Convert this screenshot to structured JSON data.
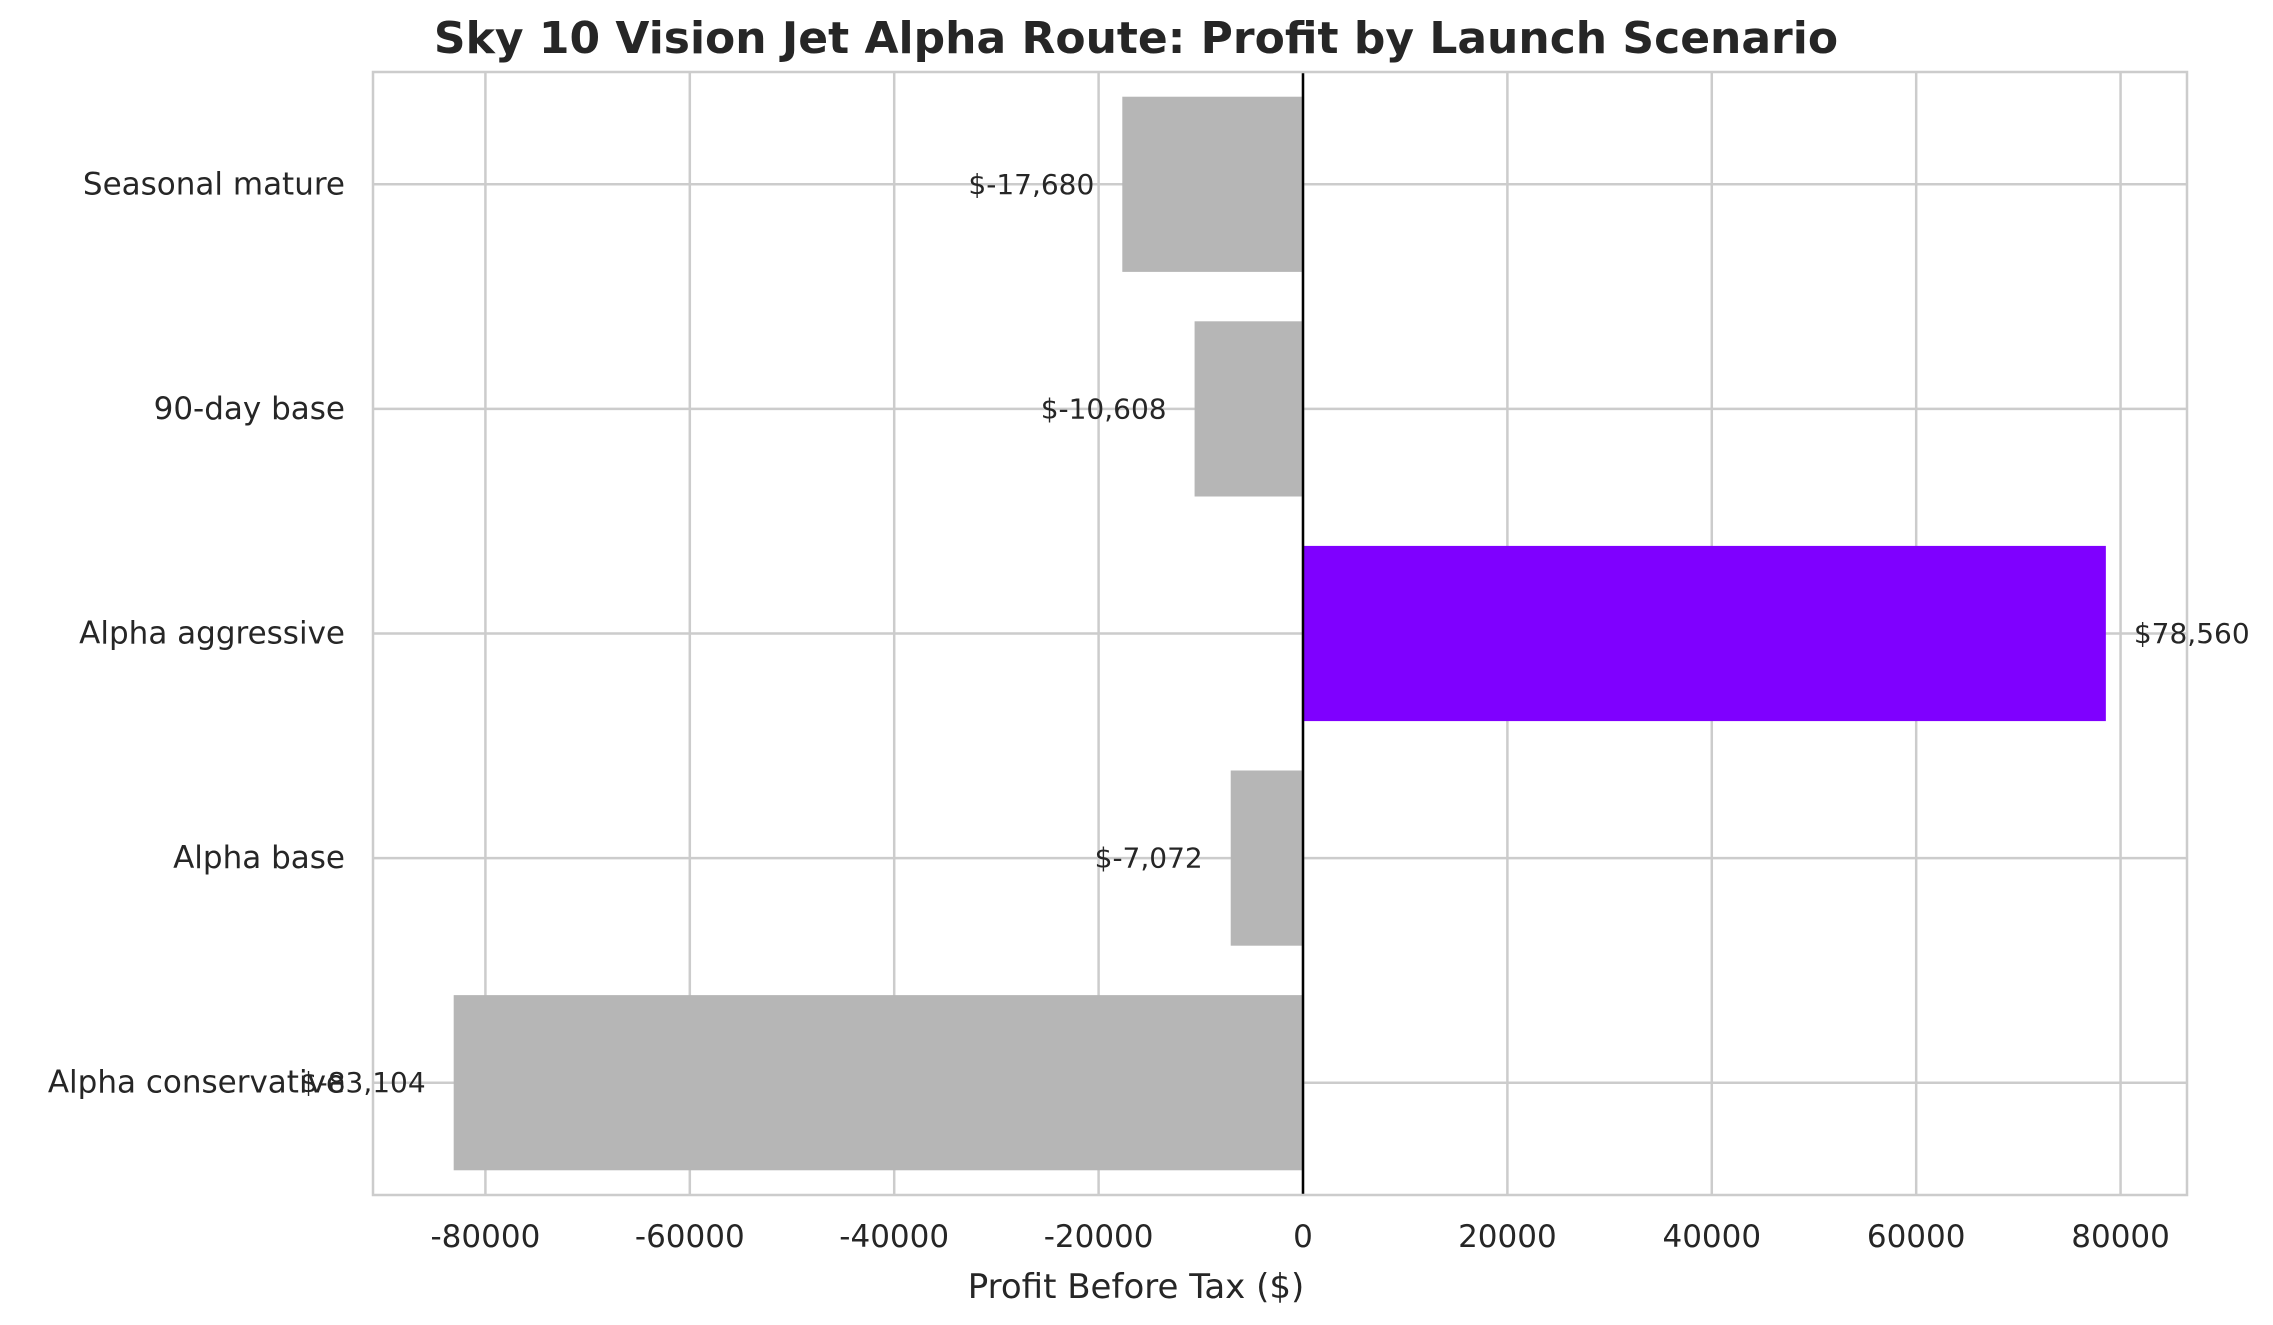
{
  "chart_data": {
    "type": "bar",
    "orientation": "horizontal",
    "title": "Sky 10 Vision Jet Alpha Route: Profit by Launch Scenario",
    "xlabel": "Profit Before Tax ($)",
    "ylabel": "",
    "categories": [
      "Seasonal mature",
      "90-day base",
      "Alpha aggressive",
      "Alpha base",
      "Alpha conservative"
    ],
    "values": [
      -17680,
      -10608,
      78560,
      -7072,
      -83104
    ],
    "data_labels": [
      "$-17,680",
      "$-10,608",
      "$78,560",
      "$-7,072",
      "$-83,104"
    ],
    "highlight_category": "Alpha aggressive",
    "xlim": [
      -91000,
      86500
    ],
    "xticks": [
      -80000,
      -60000,
      -40000,
      -20000,
      0,
      20000,
      40000,
      60000,
      80000
    ],
    "xtick_labels": [
      "-80000",
      "-60000",
      "-40000",
      "-20000",
      "0",
      "20000",
      "40000",
      "60000",
      "80000"
    ],
    "grid": true,
    "legend": "none",
    "colors": {
      "highlight": "#7f00ff",
      "default": "#b6b6b6",
      "grid": "#cccccc",
      "zero_line": "#000000",
      "text": "#262626"
    }
  }
}
